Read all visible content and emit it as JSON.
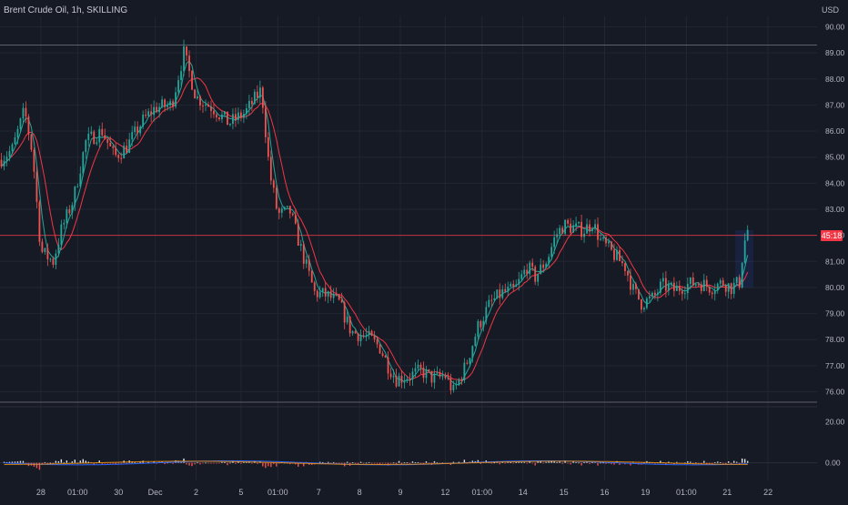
{
  "header": {
    "title": "Brent Crude Oil, 1h, SKILLING",
    "currency": "USD"
  },
  "price_tag": "45:18",
  "chart_data": [
    {
      "type": "candlestick",
      "title": "Brent Crude Oil, 1h, SKILLING",
      "y_unit": "USD",
      "ylim": [
        75.6,
        90.4
      ],
      "y_ticks": [
        "76.00",
        "77.00",
        "78.00",
        "79.00",
        "80.00",
        "81.00",
        "82.00",
        "83.00",
        "84.00",
        "85.00",
        "86.00",
        "87.00",
        "88.00",
        "89.00",
        "90.00"
      ],
      "x_ticks": [
        "28",
        "01:00",
        "30",
        "Dec",
        "2",
        "5",
        "01:00",
        "7",
        "8",
        "9",
        "12",
        "01:00",
        "14",
        "15",
        "16",
        "19",
        "01:00",
        "21",
        "22"
      ],
      "x_range": [
        0,
        100
      ],
      "x_tick_positions": [
        5,
        9.5,
        14.5,
        19,
        24,
        29.5,
        34,
        39,
        44,
        49,
        54.5,
        59,
        64,
        69,
        74,
        79,
        84,
        89,
        94
      ],
      "path": [
        [
          0,
          84.9
        ],
        [
          1.5,
          85.3
        ],
        [
          3,
          86.8
        ],
        [
          4,
          85.1
        ],
        [
          5,
          81.4
        ],
        [
          6.5,
          81.0
        ],
        [
          7.5,
          82.2
        ],
        [
          9,
          83.4
        ],
        [
          10.5,
          85.6
        ],
        [
          12.5,
          86.0
        ],
        [
          14,
          85.0
        ],
        [
          15.5,
          85.4
        ],
        [
          17.5,
          86.4
        ],
        [
          19,
          86.9
        ],
        [
          21,
          87.0
        ],
        [
          22.5,
          89.0
        ],
        [
          24,
          87.3
        ],
        [
          26,
          86.9
        ],
        [
          28,
          86.3
        ],
        [
          30,
          86.7
        ],
        [
          32,
          87.6
        ],
        [
          33,
          84.4
        ],
        [
          34,
          82.8
        ],
        [
          35.5,
          82.9
        ],
        [
          37,
          81.3
        ],
        [
          38.5,
          79.8
        ],
        [
          40,
          79.7
        ],
        [
          41.5,
          79.4
        ],
        [
          43,
          78.3
        ],
        [
          45,
          78.1
        ],
        [
          46.5,
          77.7
        ],
        [
          47.5,
          77.0
        ],
        [
          48.5,
          76.5
        ],
        [
          50,
          76.6
        ],
        [
          51.5,
          76.8
        ],
        [
          53,
          76.5
        ],
        [
          54.5,
          76.6
        ],
        [
          55.5,
          76.0
        ],
        [
          57,
          77.0
        ],
        [
          58.5,
          78.5
        ],
        [
          60,
          79.4
        ],
        [
          61.5,
          79.8
        ],
        [
          63,
          79.9
        ],
        [
          64.5,
          80.8
        ],
        [
          65.5,
          80.4
        ],
        [
          67,
          81.1
        ],
        [
          68,
          82.0
        ],
        [
          69,
          82.4
        ],
        [
          70,
          82.3
        ],
        [
          71.5,
          82.2
        ],
        [
          72.5,
          82.5
        ],
        [
          73.5,
          81.8
        ],
        [
          75,
          81.3
        ],
        [
          76.5,
          80.8
        ],
        [
          77.5,
          79.9
        ],
        [
          78.5,
          79.4
        ],
        [
          80,
          79.6
        ],
        [
          81,
          80.1
        ],
        [
          82.5,
          79.9
        ],
        [
          84,
          80.1
        ],
        [
          85.5,
          80.2
        ],
        [
          87,
          80.0
        ],
        [
          88.5,
          80.2
        ],
        [
          89.5,
          80.0
        ],
        [
          90.5,
          80.2
        ],
        [
          91,
          81.6
        ],
        [
          91.5,
          82.2
        ]
      ],
      "series": [
        {
          "kind": "candles",
          "up_color": "#26a69a",
          "down_color": "#ef5350"
        },
        {
          "kind": "moving-average",
          "color": "#f23645"
        },
        {
          "kind": "moving-average",
          "color": "#26a69a"
        }
      ],
      "reference_lines": [
        89.3,
        75.6
      ],
      "current_price_line": 82.0,
      "highlight_zone": {
        "x": [
          90,
          92.2
        ],
        "y": [
          80.0,
          82.2
        ]
      }
    },
    {
      "type": "histogram",
      "indicator": "oscillator",
      "ylim": [
        -5,
        25
      ],
      "y_ticks": [
        "20.00",
        "0.00"
      ],
      "colors": {
        "up": "#e0e3eb",
        "down": "#ef5350",
        "line_a": "#2962ff",
        "line_b": "#ff9800"
      }
    }
  ]
}
